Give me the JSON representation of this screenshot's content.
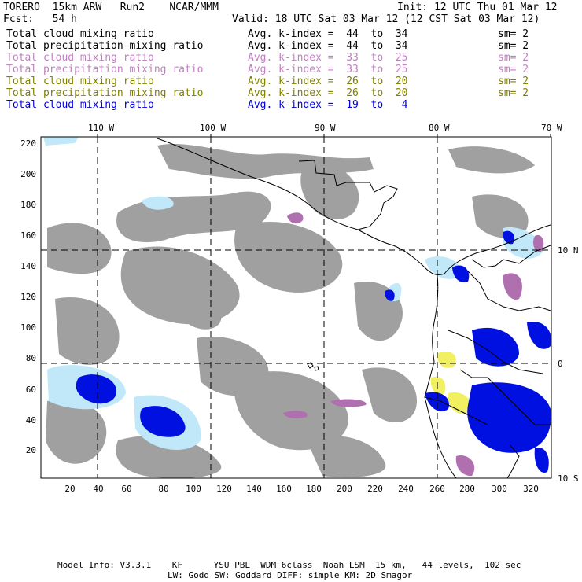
{
  "header": {
    "model": "TORERO  15km ARW   Run2    NCAR/MMM",
    "init": "Init: 12 UTC Thu 01 Mar 12",
    "fcst": "Fcst:   54 h",
    "valid": "Valid: 18 UTC Sat 03 Mar 12 (12 CST Sat 03 Mar 12)"
  },
  "legend": [
    {
      "field": "Total cloud mixing ratio",
      "kindex": "Avg. k-index =  44  to  34",
      "sm": "sm= 2",
      "color": "#000000"
    },
    {
      "field": "Total precipitation mixing ratio",
      "kindex": "Avg. k-index =  44  to  34",
      "sm": "sm= 2",
      "color": "#000000"
    },
    {
      "field": "Total cloud mixing ratio",
      "kindex": "Avg. k-index =  33  to  25",
      "sm": "sm= 2",
      "color": "#c080c0"
    },
    {
      "field": "Total precipitation mixing ratio",
      "kindex": "Avg. k-index =  33  to  25",
      "sm": "sm= 2",
      "color": "#c080c0"
    },
    {
      "field": "Total cloud mixing ratio",
      "kindex": "Avg. k-index =  26  to  20",
      "sm": "sm= 2",
      "color": "#808000"
    },
    {
      "field": "Total precipitation mixing ratio",
      "kindex": "Avg. k-index =  26  to  20",
      "sm": "sm= 2",
      "color": "#808000"
    },
    {
      "field": "Total cloud mixing ratio",
      "kindex": "Avg. k-index =  19  to   4",
      "sm": "",
      "color": "#0000e0"
    }
  ],
  "map": {
    "lon_labels": [
      "110 W",
      "100 W",
      "90 W",
      "80 W",
      "70 W"
    ],
    "lat_labels": [
      "10 N",
      "0",
      "10 S"
    ],
    "x_ticks": [
      "20",
      "40",
      "60",
      "80",
      "100",
      "120",
      "140",
      "160",
      "180",
      "200",
      "220",
      "240",
      "260",
      "280",
      "300",
      "320"
    ],
    "y_ticks": [
      "20",
      "40",
      "60",
      "80",
      "100",
      "120",
      "140",
      "160",
      "180",
      "200",
      "220"
    ],
    "colors": {
      "gray_cloud": "#a0a0a0",
      "purple": "#b070b0",
      "yellow": "#f0f060",
      "blue": "#0010e0",
      "light_blue": "#c0e8f8"
    }
  },
  "footer": {
    "line1": "Model Info: V3.3.1    KF      YSU PBL  WDM 6class  Noah LSM  15 km,   44 levels,  102 sec",
    "line2": "LW: Godd SW: Goddard DIFF: simple KM: 2D Smagor"
  }
}
